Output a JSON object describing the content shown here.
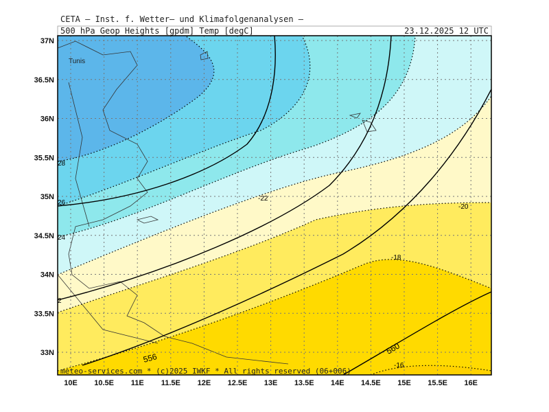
{
  "header": {
    "title": "CETA – Inst. f. Wetter– und Klimafolgenanalysen –",
    "subtitle": "500 hPa Geop Heights [gpdm] Temp [degC]",
    "datetime": "23.12.2025 12 UTC"
  },
  "map": {
    "place_labels": [
      "Tunis"
    ],
    "contour_labels": [
      "-22",
      "-20",
      "-18",
      "-16",
      "556",
      "560",
      "28",
      "26",
      "24",
      "2"
    ],
    "lat_labels": [
      "37N",
      "36.5N",
      "36N",
      "35.5N",
      "35N",
      "34.5N",
      "34N",
      "33.5N",
      "33N"
    ],
    "lon_labels": [
      "10E",
      "10.5E",
      "11E",
      "11.5E",
      "12E",
      "12.5E",
      "13E",
      "13.5E",
      "14E",
      "14.5E",
      "15E",
      "15.5E",
      "16E"
    ]
  },
  "footer": {
    "credit": "meteo-services.com * (c)2025 IWKF * All rights reserved (06+006)"
  }
}
